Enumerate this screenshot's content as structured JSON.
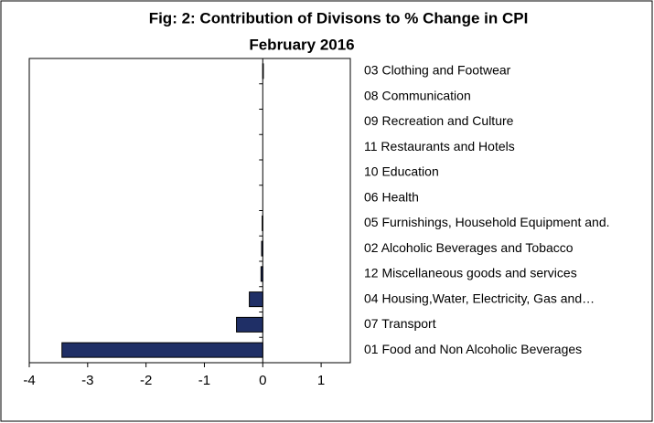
{
  "chart_data": {
    "type": "barh",
    "title": "Fig: 2: Contribution of Divisons to % Change in CPI",
    "subtitle": "February 2016",
    "categories": [
      "03 Clothing and Footwear",
      "08 Communication",
      "09 Recreation and Culture",
      "11 Restaurants and Hotels",
      "10 Education",
      "06 Health",
      "05 Furnishings, Household Equipment and.",
      "02 Alcoholic Beverages and Tobacco",
      "12 Miscellaneous goods and services",
      "04 Housing,Water, Electricity, Gas and…",
      "07 Transport",
      "01 Food and Non Alcoholic Beverages"
    ],
    "values": [
      0.01,
      0,
      0,
      0,
      0,
      0,
      -0.01,
      -0.02,
      -0.03,
      -0.23,
      -0.45,
      -3.44
    ],
    "color": "#1f2f66",
    "xlim": [
      -4,
      1.5
    ],
    "xticks": [
      -4,
      -3,
      -2,
      -1,
      0,
      1
    ]
  }
}
